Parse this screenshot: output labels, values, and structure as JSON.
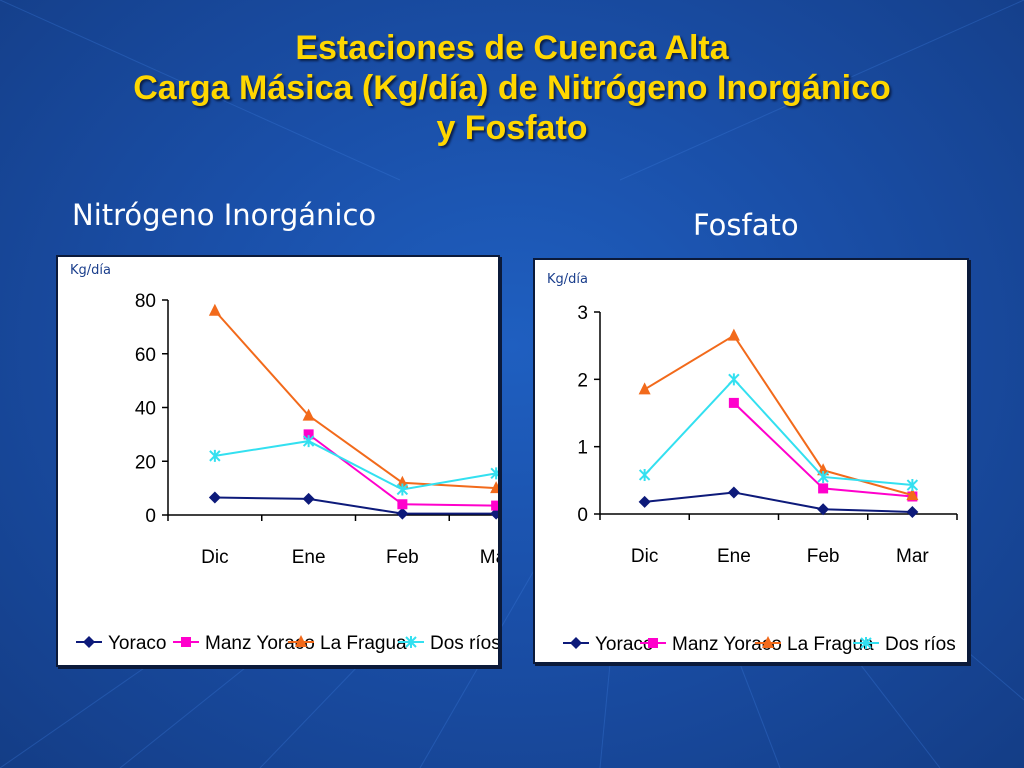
{
  "slide": {
    "title_lines": [
      "Estaciones de Cuenca Alta",
      "Carga Másica (Kg/día) de Nitrógeno Inorgánico",
      "y Fosfato"
    ],
    "colors": {
      "title": "#ffd700",
      "background": "#1a4fa8"
    }
  },
  "chart_data": [
    {
      "type": "line",
      "title": "Nitrógeno Inorgánico",
      "ylabel": "Kg/día",
      "xlabel": "",
      "categories": [
        "Dic",
        "Ene",
        "Feb",
        "Mar"
      ],
      "yticks": [
        "0",
        "20",
        "40",
        "60",
        "80"
      ],
      "ylim": [
        0,
        80
      ],
      "grid": false,
      "legend_position": "bottom",
      "series": [
        {
          "name": "Yoraco",
          "values": [
            6.5,
            6,
            0.5,
            0.5
          ],
          "color": "#0d1a7a",
          "marker": "diamond"
        },
        {
          "name": "Manz Yoraco",
          "values": [
            null,
            30,
            4,
            3.5
          ],
          "color": "#ff00cc",
          "marker": "square"
        },
        {
          "name": "La Fragua",
          "values": [
            76,
            37,
            12,
            10
          ],
          "color": "#f26a1b",
          "marker": "triangle"
        },
        {
          "name": "Dos ríos",
          "values": [
            22,
            27.5,
            9.5,
            15.5
          ],
          "color": "#33e0f0",
          "marker": "x"
        }
      ]
    },
    {
      "type": "line",
      "title": "Fosfato",
      "ylabel": "Kg/día",
      "xlabel": "",
      "categories": [
        "Dic",
        "Ene",
        "Feb",
        "Mar"
      ],
      "yticks": [
        "0",
        "1",
        "2",
        "3"
      ],
      "ylim": [
        0,
        3
      ],
      "grid": false,
      "legend_position": "bottom",
      "series": [
        {
          "name": "Yoraco",
          "values": [
            0.18,
            0.32,
            0.07,
            0.03
          ],
          "color": "#0d1a7a",
          "marker": "diamond"
        },
        {
          "name": "Manz Yoraco",
          "values": [
            null,
            1.65,
            0.38,
            0.26
          ],
          "color": "#ff00cc",
          "marker": "square"
        },
        {
          "name": "La Fragua",
          "values": [
            1.85,
            2.65,
            0.65,
            0.28
          ],
          "color": "#f26a1b",
          "marker": "triangle"
        },
        {
          "name": "Dos ríos",
          "values": [
            0.58,
            2.0,
            0.55,
            0.43
          ],
          "color": "#33e0f0",
          "marker": "x"
        }
      ]
    }
  ]
}
